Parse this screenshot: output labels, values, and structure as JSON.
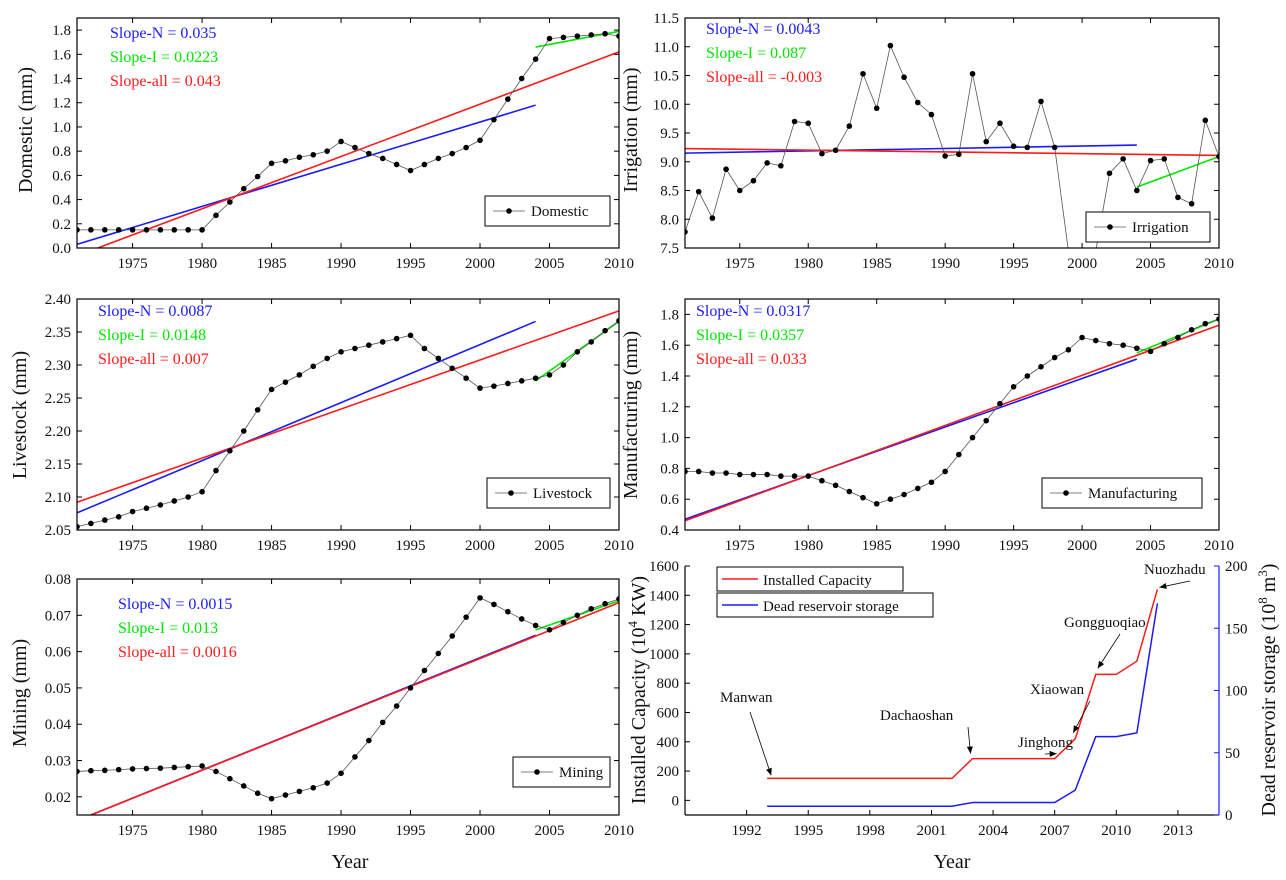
{
  "colors": {
    "natural": "#1a1aff",
    "irrigated": "#00e600",
    "all": "#ff1a1a",
    "data": "#000000",
    "capacity": "#ff1a1a",
    "storage": "#1a1aff"
  },
  "year_label": "Year",
  "chart_data": [
    {
      "id": "domestic",
      "type": "line",
      "ylabel": "Domestic (mm)",
      "xlim": [
        1971,
        2010
      ],
      "ylim": [
        0,
        1.9
      ],
      "xticks": [
        1975,
        1980,
        1985,
        1990,
        1995,
        2000,
        2005,
        2010
      ],
      "xtick_labels": [
        "1975",
        "1980",
        "1985",
        "1990",
        "1995",
        "2000",
        "2005",
        "2010"
      ],
      "yticks": [
        0,
        0.2,
        0.4,
        0.6,
        0.8,
        1.0,
        1.2,
        1.4,
        1.6,
        1.8
      ],
      "ytick_labels": [
        "0.0",
        "0.2",
        "0.4",
        "0.6",
        "0.8",
        "1.0",
        "1.2",
        "1.4",
        "1.6",
        "1.8"
      ],
      "legend": "Domestic",
      "legend_pos": "bottom-right",
      "annotations": [
        "Slope-N = 0.035",
        "Slope-I = 0.0223",
        "Slope-all = 0.043"
      ],
      "x": [
        1971,
        1972,
        1973,
        1974,
        1975,
        1976,
        1977,
        1978,
        1979,
        1980,
        1981,
        1982,
        1983,
        1984,
        1985,
        1986,
        1987,
        1988,
        1989,
        1990,
        1991,
        1992,
        1993,
        1994,
        1995,
        1996,
        1997,
        1998,
        1999,
        2000,
        2001,
        2002,
        2003,
        2004,
        2005,
        2006,
        2007,
        2008,
        2009,
        2010
      ],
      "y": [
        0.15,
        0.15,
        0.15,
        0.15,
        0.15,
        0.15,
        0.15,
        0.15,
        0.15,
        0.15,
        0.27,
        0.38,
        0.49,
        0.59,
        0.7,
        0.72,
        0.75,
        0.77,
        0.8,
        0.88,
        0.83,
        0.78,
        0.74,
        0.69,
        0.64,
        0.69,
        0.74,
        0.78,
        0.83,
        0.89,
        1.06,
        1.23,
        1.4,
        1.56,
        1.73,
        1.74,
        1.75,
        1.76,
        1.77,
        1.75
      ],
      "trends": [
        {
          "kind": "natural",
          "x": [
            1971,
            2004
          ],
          "y": [
            0.03,
            1.18
          ]
        },
        {
          "kind": "irrigated",
          "x": [
            2004,
            2010
          ],
          "y": [
            1.66,
            1.79
          ]
        },
        {
          "kind": "all",
          "x": [
            1972.5,
            2010
          ],
          "y": [
            0,
            1.62
          ]
        }
      ]
    },
    {
      "id": "irrigation",
      "type": "line",
      "ylabel": "Irrigation (mm)",
      "xlim": [
        1971,
        2010
      ],
      "ylim": [
        7.5,
        11.5
      ],
      "xticks": [
        1975,
        1980,
        1985,
        1990,
        1995,
        2000,
        2005,
        2010
      ],
      "xtick_labels": [
        "1975",
        "1980",
        "1985",
        "1990",
        "1995",
        "2000",
        "2005",
        "2010"
      ],
      "yticks": [
        7.5,
        8.0,
        8.5,
        9.0,
        9.5,
        10.0,
        10.5,
        11.0,
        11.5
      ],
      "ytick_labels": [
        "7.5",
        "8.0",
        "8.5",
        "9.0",
        "9.5",
        "10.0",
        "10.5",
        "11.0",
        "11.5"
      ],
      "legend": "Irrigation",
      "legend_pos": "bottom-right",
      "annotations": [
        "Slope-N = 0.0043",
        "Slope-I = 0.087",
        "Slope-all = -0.003"
      ],
      "x": [
        1971,
        1972,
        1973,
        1974,
        1975,
        1976,
        1977,
        1978,
        1979,
        1980,
        1981,
        1982,
        1983,
        1984,
        1985,
        1986,
        1987,
        1988,
        1989,
        1990,
        1991,
        1992,
        1993,
        1994,
        1995,
        1996,
        1997,
        1998,
        1999,
        2000,
        2001,
        2002,
        2003,
        2004,
        2005,
        2006,
        2007,
        2008,
        2009,
        2010
      ],
      "y": [
        7.78,
        8.48,
        8.02,
        8.87,
        8.5,
        8.67,
        8.98,
        8.93,
        9.7,
        9.67,
        9.14,
        9.2,
        9.62,
        10.53,
        9.93,
        11.02,
        10.47,
        10.03,
        9.82,
        9.1,
        9.13,
        10.53,
        9.35,
        9.67,
        9.27,
        9.25,
        10.05,
        9.25,
        7.45,
        7.45,
        7.45,
        8.8,
        9.05,
        8.5,
        9.02,
        9.05,
        8.38,
        8.27,
        9.72,
        9.09
      ],
      "trends": [
        {
          "kind": "natural",
          "x": [
            1971,
            2004
          ],
          "y": [
            9.15,
            9.29
          ]
        },
        {
          "kind": "irrigated",
          "x": [
            2004,
            2010
          ],
          "y": [
            8.56,
            9.09
          ]
        },
        {
          "kind": "all",
          "x": [
            1971,
            2010
          ],
          "y": [
            9.23,
            9.11
          ]
        }
      ]
    },
    {
      "id": "livestock",
      "type": "line",
      "ylabel": "Livestock (mm)",
      "xlim": [
        1971,
        2010
      ],
      "ylim": [
        2.05,
        2.4
      ],
      "xticks": [
        1975,
        1980,
        1985,
        1990,
        1995,
        2000,
        2005,
        2010
      ],
      "xtick_labels": [
        "1975",
        "1980",
        "1985",
        "1990",
        "1995",
        "2000",
        "2005",
        "2010"
      ],
      "yticks": [
        2.05,
        2.1,
        2.15,
        2.2,
        2.25,
        2.3,
        2.35,
        2.4
      ],
      "ytick_labels": [
        "2.05",
        "2.10",
        "2.15",
        "2.20",
        "2.25",
        "2.30",
        "2.35",
        "2.40"
      ],
      "legend": "Livestock",
      "legend_pos": "bottom-right",
      "annotations": [
        "Slope-N = 0.0087",
        "Slope-I = 0.0148",
        "Slope-all = 0.007"
      ],
      "x": [
        1971,
        1972,
        1973,
        1974,
        1975,
        1976,
        1977,
        1978,
        1979,
        1980,
        1981,
        1982,
        1983,
        1984,
        1985,
        1986,
        1987,
        1988,
        1989,
        1990,
        1991,
        1992,
        1993,
        1994,
        1995,
        1996,
        1997,
        1998,
        1999,
        2000,
        2001,
        2002,
        2003,
        2004,
        2005,
        2006,
        2007,
        2008,
        2009,
        2010
      ],
      "y": [
        2.055,
        2.06,
        2.065,
        2.07,
        2.078,
        2.083,
        2.088,
        2.094,
        2.1,
        2.108,
        2.14,
        2.17,
        2.2,
        2.232,
        2.263,
        2.274,
        2.285,
        2.298,
        2.31,
        2.32,
        2.325,
        2.33,
        2.335,
        2.34,
        2.345,
        2.325,
        2.31,
        2.295,
        2.28,
        2.265,
        2.268,
        2.272,
        2.276,
        2.28,
        2.285,
        2.3,
        2.32,
        2.335,
        2.352,
        2.367
      ],
      "trends": [
        {
          "kind": "natural",
          "x": [
            1971,
            2004
          ],
          "y": [
            2.076,
            2.366
          ]
        },
        {
          "kind": "irrigated",
          "x": [
            2004,
            2010
          ],
          "y": [
            2.276,
            2.366
          ]
        },
        {
          "kind": "all",
          "x": [
            1971,
            2010
          ],
          "y": [
            2.092,
            2.382
          ]
        }
      ]
    },
    {
      "id": "manufacturing",
      "type": "line",
      "ylabel": "Manufacturing (mm)",
      "xlim": [
        1971,
        2010
      ],
      "ylim": [
        0.4,
        1.9
      ],
      "xticks": [
        1975,
        1980,
        1985,
        1990,
        1995,
        2000,
        2005,
        2010
      ],
      "xtick_labels": [
        "1975",
        "1980",
        "1985",
        "1990",
        "1995",
        "2000",
        "2005",
        "2010"
      ],
      "yticks": [
        0.4,
        0.6,
        0.8,
        1.0,
        1.2,
        1.4,
        1.6,
        1.8
      ],
      "ytick_labels": [
        "0.4",
        "0.6",
        "0.8",
        "1.0",
        "1.2",
        "1.4",
        "1.6",
        "1.8"
      ],
      "legend": "Manufacturing",
      "legend_pos": "bottom-right",
      "annotations": [
        "Slope-N = 0.0317",
        "Slope-I = 0.0357",
        "Slope-all = 0.033"
      ],
      "x": [
        1971,
        1972,
        1973,
        1974,
        1975,
        1976,
        1977,
        1978,
        1979,
        1980,
        1981,
        1982,
        1983,
        1984,
        1985,
        1986,
        1987,
        1988,
        1989,
        1990,
        1991,
        1992,
        1993,
        1994,
        1995,
        1996,
        1997,
        1998,
        1999,
        2000,
        2001,
        2002,
        2003,
        2004,
        2005,
        2006,
        2007,
        2008,
        2009,
        2010
      ],
      "y": [
        0.78,
        0.78,
        0.77,
        0.77,
        0.76,
        0.76,
        0.76,
        0.75,
        0.75,
        0.75,
        0.72,
        0.69,
        0.65,
        0.61,
        0.57,
        0.6,
        0.63,
        0.67,
        0.71,
        0.78,
        0.89,
        1.0,
        1.11,
        1.22,
        1.33,
        1.4,
        1.46,
        1.52,
        1.57,
        1.65,
        1.63,
        1.61,
        1.6,
        1.58,
        1.56,
        1.61,
        1.65,
        1.7,
        1.74,
        1.77
      ],
      "trends": [
        {
          "kind": "natural",
          "x": [
            1971,
            2004
          ],
          "y": [
            0.47,
            1.51
          ]
        },
        {
          "kind": "irrigated",
          "x": [
            2004,
            2010
          ],
          "y": [
            1.55,
            1.77
          ]
        },
        {
          "kind": "all",
          "x": [
            1971,
            2010
          ],
          "y": [
            0.46,
            1.73
          ]
        }
      ]
    },
    {
      "id": "mining",
      "type": "line",
      "ylabel": "Mining (mm)",
      "xlim": [
        1971,
        2010
      ],
      "ylim": [
        0.015,
        0.08
      ],
      "xticks": [
        1975,
        1980,
        1985,
        1990,
        1995,
        2000,
        2005,
        2010
      ],
      "xtick_labels": [
        "1975",
        "1980",
        "1985",
        "1990",
        "1995",
        "2000",
        "2005",
        "2010"
      ],
      "yticks": [
        0.02,
        0.03,
        0.04,
        0.05,
        0.06,
        0.07,
        0.08
      ],
      "ytick_labels": [
        "0.02",
        "0.03",
        "0.04",
        "0.05",
        "0.06",
        "0.07",
        "0.08"
      ],
      "legend": "Mining",
      "legend_pos": "bottom-right",
      "annotations": [
        "Slope-N = 0.0015",
        "Slope-I = 0.013",
        "Slope-all = 0.0016"
      ],
      "x": [
        1971,
        1972,
        1973,
        1974,
        1975,
        1976,
        1977,
        1978,
        1979,
        1980,
        1981,
        1982,
        1983,
        1984,
        1985,
        1986,
        1987,
        1988,
        1989,
        1990,
        1991,
        1992,
        1993,
        1994,
        1995,
        1996,
        1997,
        1998,
        1999,
        2000,
        2001,
        2002,
        2003,
        2004,
        2005,
        2006,
        2007,
        2008,
        2009,
        2010
      ],
      "y": [
        0.027,
        0.0272,
        0.0273,
        0.0275,
        0.0277,
        0.0278,
        0.0279,
        0.0281,
        0.0283,
        0.0285,
        0.027,
        0.025,
        0.023,
        0.021,
        0.0195,
        0.0205,
        0.0215,
        0.0225,
        0.0238,
        0.0265,
        0.031,
        0.0355,
        0.0405,
        0.045,
        0.05,
        0.0548,
        0.0595,
        0.0643,
        0.0695,
        0.0748,
        0.073,
        0.071,
        0.069,
        0.0672,
        0.066,
        0.068,
        0.07,
        0.0718,
        0.0732,
        0.0745
      ],
      "trends": [
        {
          "kind": "natural",
          "x": [
            1972,
            2004
          ],
          "y": [
            0.015,
            0.0645
          ]
        },
        {
          "kind": "irrigated",
          "x": [
            2004,
            2010
          ],
          "y": [
            0.066,
            0.074
          ]
        },
        {
          "kind": "all",
          "x": [
            1972,
            2010
          ],
          "y": [
            0.015,
            0.0735
          ]
        }
      ]
    },
    {
      "id": "hydropower",
      "type": "line",
      "ylabel": "Installed Capacity (10",
      "ylabel_suffix": "KW)",
      "ylabel_suffix_note": "exponent superscript",
      "ylabel_power": "4",
      "y2label": "Dead reservoir storage (10",
      "y2label_power": "8",
      "y2label_unit": " m",
      "y2label_unit_power": "3",
      "y2label_end": ")",
      "xlim": [
        1989,
        2015
      ],
      "ylim": [
        -100,
        1600
      ],
      "y2lim": [
        0,
        200
      ],
      "xticks": [
        1992,
        1995,
        1998,
        2001,
        2004,
        2007,
        2010,
        2013
      ],
      "xtick_labels": [
        "1992",
        "1995",
        "1998",
        "2001",
        "2004",
        "2007",
        "2010",
        "2013"
      ],
      "yticks": [
        0,
        200,
        400,
        600,
        800,
        1000,
        1200,
        1400,
        1600
      ],
      "ytick_labels": [
        "0",
        "200",
        "400",
        "600",
        "800",
        "1000",
        "1200",
        "1400",
        "1600"
      ],
      "y2ticks": [
        0,
        50,
        100,
        150,
        200
      ],
      "y2tick_labels": [
        "0",
        "50",
        "100",
        "150",
        "200"
      ],
      "series": [
        {
          "name": "Installed Capacity",
          "axis": "left",
          "x": [
            1993,
            2002,
            2003,
            2007,
            2008,
            2009,
            2010,
            2011,
            2012
          ],
          "y": [
            150,
            150,
            285,
            285,
            420,
            860,
            860,
            950,
            1440
          ]
        },
        {
          "name": "Dead reservoir storage",
          "axis": "right",
          "x": [
            1993,
            2002,
            2003,
            2007,
            2008,
            2009,
            2010,
            2011,
            2012
          ],
          "y": [
            7,
            7,
            10,
            10,
            20,
            63,
            63,
            66,
            170
          ]
        }
      ],
      "dams": [
        {
          "name": "Manwan"
        },
        {
          "name": "Dachaoshan"
        },
        {
          "name": "Jinghong"
        },
        {
          "name": "Xiaowan"
        },
        {
          "name": "Gongguoqiao"
        },
        {
          "name": "Nuozhadu"
        }
      ]
    }
  ]
}
